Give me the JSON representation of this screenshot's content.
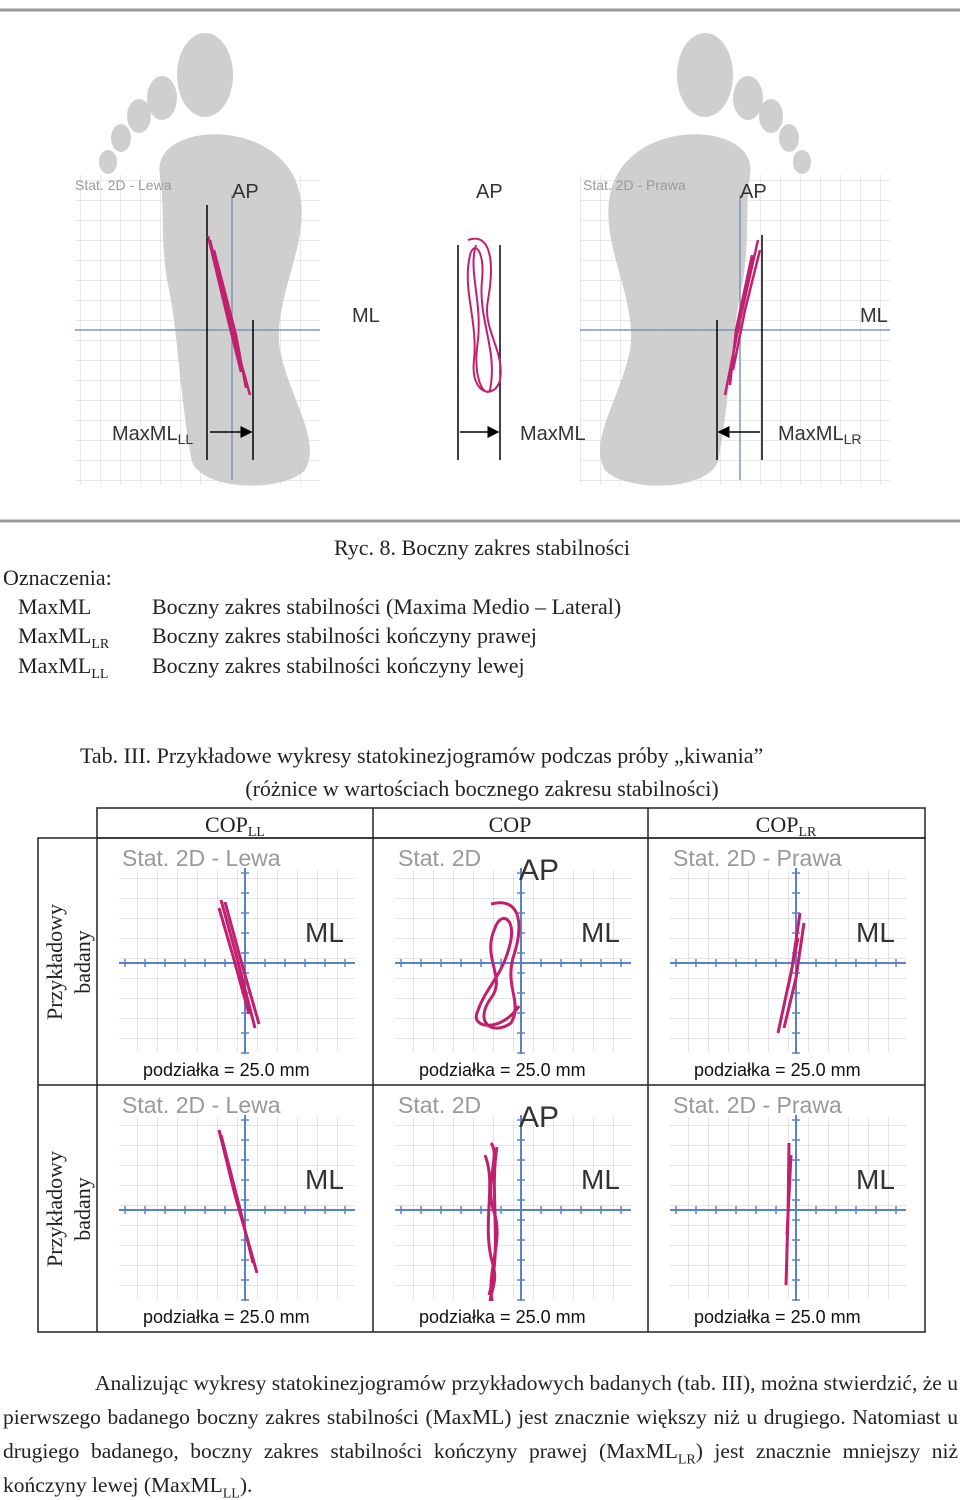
{
  "figure": {
    "panels": [
      {
        "label": "Stat. 2D - Lewa",
        "ap": "AP",
        "ml": "ML",
        "measure": {
          "base": "MaxML",
          "sub": "LL"
        }
      },
      {
        "ap": "AP",
        "measure": {
          "base": "MaxML"
        }
      },
      {
        "label": "Stat. 2D - Prawa",
        "ap": "AP",
        "ml": "ML",
        "measure": {
          "base": "MaxML",
          "sub": "LR"
        }
      }
    ],
    "caption": "Ryc. 8. Boczny zakres stabilności"
  },
  "legend": {
    "title": "Oznaczenia:",
    "items": [
      {
        "term": {
          "base": "MaxML"
        },
        "desc": "Boczny zakres stabilności (Maxima Medio – Lateral)"
      },
      {
        "term": {
          "base": "MaxML",
          "sub": "LR"
        },
        "desc": "Boczny zakres stabilności kończyny prawej"
      },
      {
        "term": {
          "base": "MaxML",
          "sub": "LL"
        },
        "desc": "Boczny zakres stabilności kończyny lewej"
      }
    ]
  },
  "table": {
    "title": [
      "Tab. III. Przykładowe wykresy statokinezjogramów podczas próby „kiwania”",
      "(różnice w wartościach bocznego zakresu stabilności)"
    ],
    "columns": [
      {
        "base": "COP",
        "sub": "LL"
      },
      {
        "base": "COP"
      },
      {
        "base": "COP",
        "sub": "LR"
      }
    ],
    "rows": [
      {
        "label": [
          "Przykładowy",
          "badany"
        ],
        "cells": [
          {
            "title": "Stat. 2D - Lewa",
            "ml": "ML",
            "scale": "podziałka = 25.0 mm"
          },
          {
            "title": "Stat. 2D",
            "ap": "AP",
            "ml": "ML",
            "scale": "podziałka = 25.0 mm"
          },
          {
            "title": "Stat. 2D - Prawa",
            "ml": "ML",
            "scale": "podziałka = 25.0 mm"
          }
        ]
      },
      {
        "label": [
          "Przykładowy",
          "badany"
        ],
        "cells": [
          {
            "title": "Stat. 2D - Lewa",
            "ml": "ML",
            "scale": "podziałka = 25.0 mm"
          },
          {
            "title": "Stat. 2D",
            "ap": "AP",
            "ml": "ML",
            "scale": "podziałka = 25.0 mm"
          },
          {
            "title": "Stat. 2D - Prawa",
            "ml": "ML",
            "scale": "podziałka = 25.0 mm"
          }
        ]
      }
    ]
  },
  "paragraph": [
    {
      "text": "Analizując wykresy statokinezjogramów przykładowych badanych (tab. III), można stwierdzić, że u pierwszego badanego boczny zakres stabilności (MaxML) jest znacznie większy niż u drugiego. Natomiast u drugiego badanego, boczny zakres stabilności kończyny prawej (MaxML"
    },
    {
      "sub": "LR"
    },
    {
      "text": ") jest znacznie mniejszy niż kończyny lewej (MaxML"
    },
    {
      "sub": "LL"
    },
    {
      "text": ")."
    }
  ]
}
